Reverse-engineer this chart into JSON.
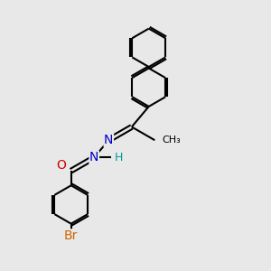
{
  "bg_color": "#e8e8e8",
  "line_color": "#000000",
  "bond_width": 1.5,
  "atom_colors": {
    "N": "#0000cc",
    "O": "#cc0000",
    "Br": "#cc6600",
    "H": "#009999",
    "C": "#000000"
  },
  "font_size": 9
}
